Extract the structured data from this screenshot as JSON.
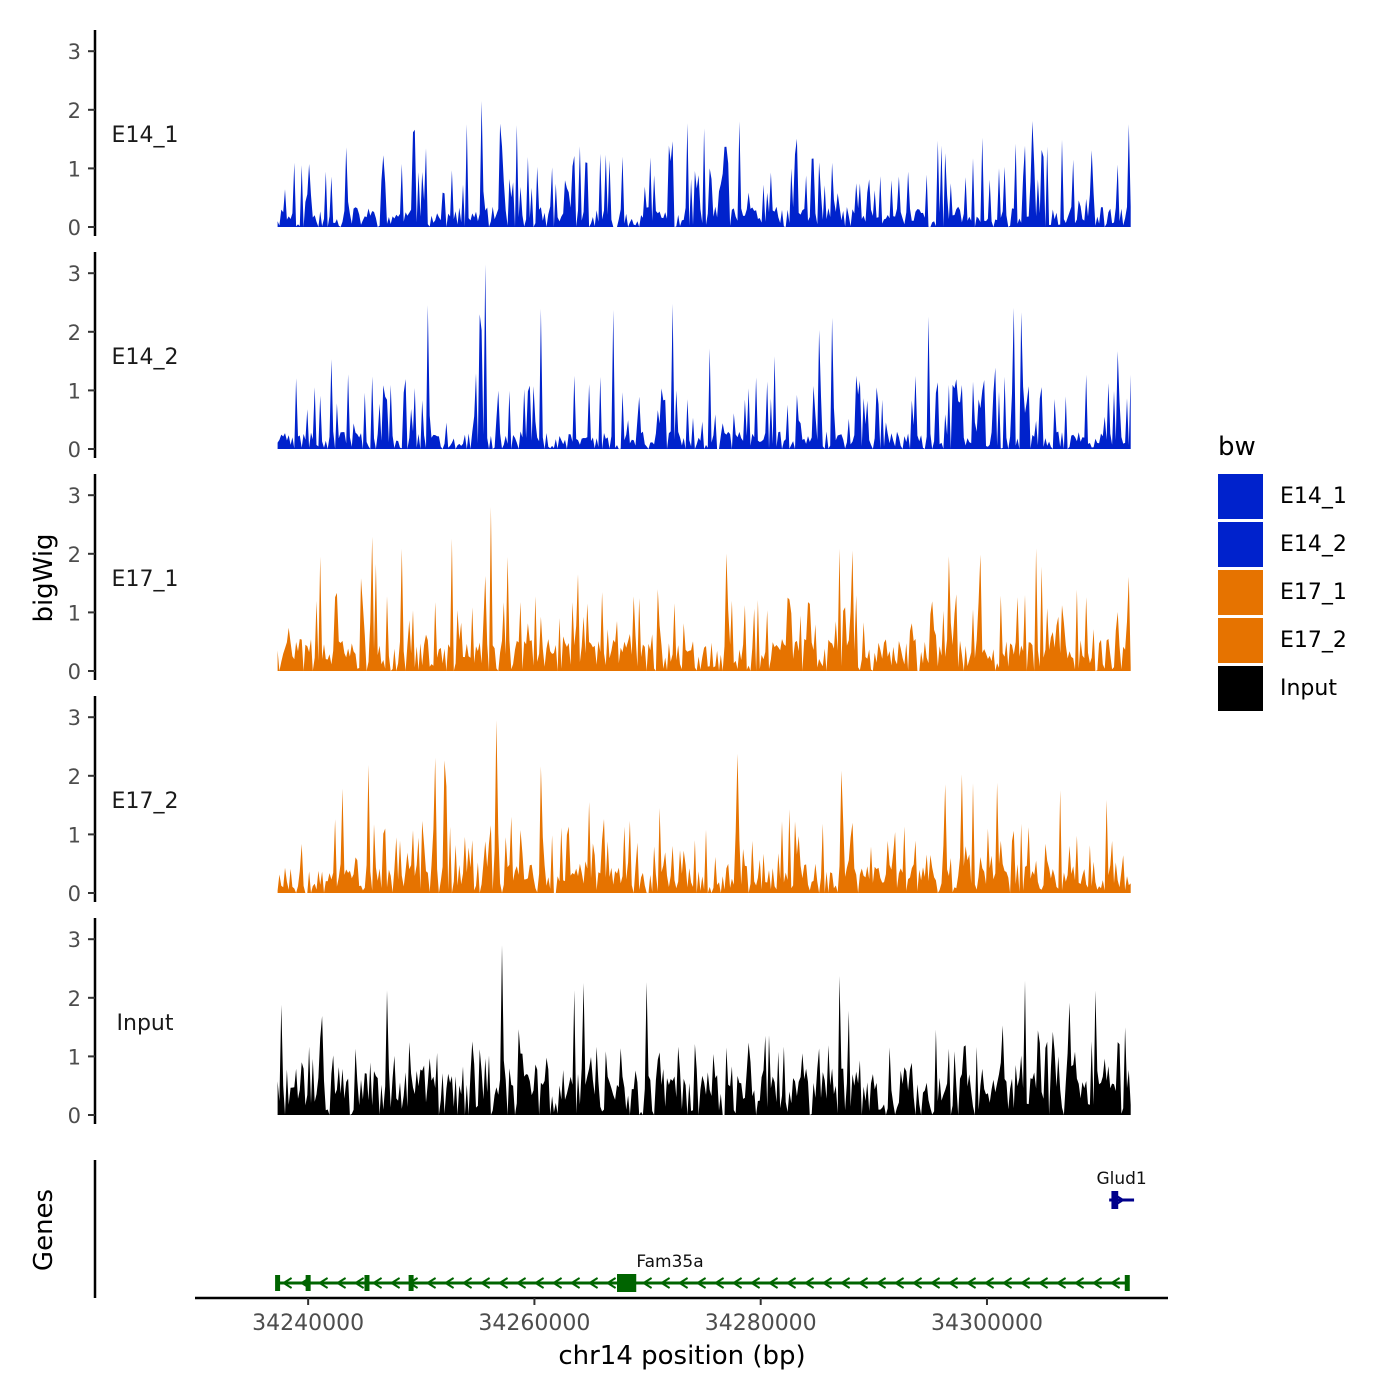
{
  "chart_data": {
    "type": "area",
    "chromosome_label": "chr14 position (bp)",
    "y_axis_label": "bigWig",
    "genes_panel_label": "Genes",
    "x_range": [
      34230000,
      34316000
    ],
    "region": [
      34237300,
      34312700
    ],
    "x_ticks": [
      {
        "value": 34240000,
        "label": "34240000"
      },
      {
        "value": 34260000,
        "label": "34260000"
      },
      {
        "value": 34280000,
        "label": "34280000"
      },
      {
        "value": 34300000,
        "label": "34300000"
      }
    ],
    "y_ticks": [
      {
        "value": 0,
        "label": "0"
      },
      {
        "value": 1,
        "label": "1"
      },
      {
        "value": 2,
        "label": "2"
      },
      {
        "value": 3,
        "label": "3"
      }
    ],
    "y_range": [
      0,
      3.3
    ],
    "legend": {
      "title": "bw",
      "items": [
        {
          "name": "E14_1",
          "color": "#0022CC"
        },
        {
          "name": "E14_2",
          "color": "#0022CC"
        },
        {
          "name": "E17_1",
          "color": "#E67300"
        },
        {
          "name": "E17_2",
          "color": "#E67300"
        },
        {
          "name": "Input",
          "color": "#000000"
        }
      ]
    },
    "tracks": [
      {
        "name": "E14_1",
        "color": "#0022CC",
        "peak_max": 2.15,
        "baseline": 0.35,
        "seed": 11
      },
      {
        "name": "E14_2",
        "color": "#0022CC",
        "peak_max": 3.15,
        "baseline": 0.3,
        "seed": 23
      },
      {
        "name": "E17_1",
        "color": "#E67300",
        "peak_max": 2.8,
        "baseline": 0.55,
        "seed": 37
      },
      {
        "name": "E17_2",
        "color": "#E67300",
        "peak_max": 2.95,
        "baseline": 0.5,
        "seed": 53
      },
      {
        "name": "Input",
        "color": "#000000",
        "peak_max": 2.9,
        "baseline": 0.8,
        "seed": 71
      }
    ],
    "genes": [
      {
        "name": "Fam35a",
        "start": 34237300,
        "end": 34312400,
        "strand": "-",
        "color": "#006400",
        "row": "bottom",
        "exons": [
          34237300,
          34240000,
          34245200,
          34249100,
          34268000,
          34312400
        ],
        "cds": [
          34267300,
          34269000
        ]
      },
      {
        "name": "Glud1",
        "start": 34310800,
        "end": 34313000,
        "strand": "+",
        "color": "#00008B",
        "row": "top",
        "exons": [
          34311300
        ],
        "cds": [
          34311000,
          34311600
        ]
      }
    ]
  }
}
